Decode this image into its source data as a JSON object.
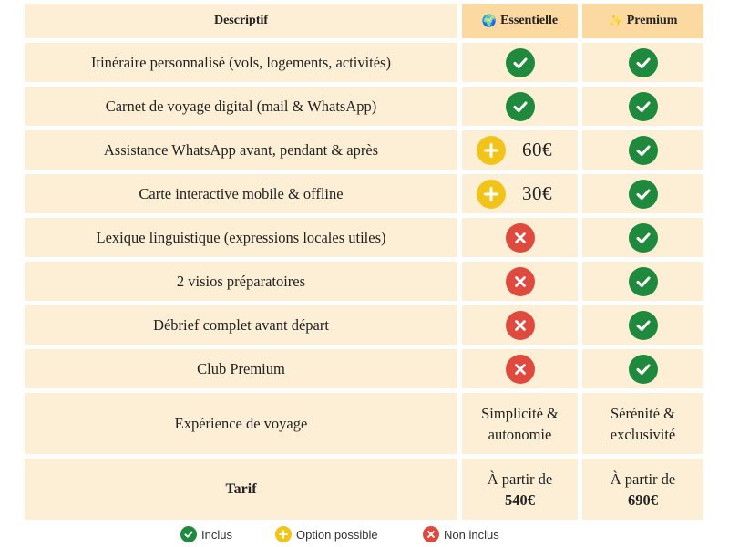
{
  "header": {
    "descriptif": "Descriptif",
    "essentielle": "Essentielle",
    "premium": "Premium",
    "essentielle_icon": "globe-icon",
    "premium_icon": "sparkle-icon"
  },
  "rows": [
    {
      "label": "Itinéraire personnalisé (vols, logements, activités)",
      "essentielle": "included",
      "premium": "included"
    },
    {
      "label": "Carnet de voyage digital (mail & WhatsApp)",
      "essentielle": "included",
      "premium": "included"
    },
    {
      "label": "Assistance WhatsApp avant, pendant & après",
      "essentielle": "option",
      "essentielle_price": "60€",
      "premium": "included"
    },
    {
      "label": "Carte interactive mobile & offline",
      "essentielle": "option",
      "essentielle_price": "30€",
      "premium": "included"
    },
    {
      "label": "Lexique linguistique (expressions locales utiles)",
      "essentielle": "not-included",
      "premium": "included"
    },
    {
      "label": "2 visios préparatoires",
      "essentielle": "not-included",
      "premium": "included"
    },
    {
      "label": "Débrief complet avant départ",
      "essentielle": "not-included",
      "premium": "included"
    },
    {
      "label": "Club Premium",
      "essentielle": "not-included",
      "premium": "included"
    }
  ],
  "experience": {
    "label": "Expérience de voyage",
    "essentielle_line1": "Simplicité &",
    "essentielle_line2": "autonomie",
    "premium_line1": "Sérénité &",
    "premium_line2": "exclusivité"
  },
  "tarif": {
    "label": "Tarif",
    "essentielle_line1": "À partir de",
    "essentielle_price": "540€",
    "premium_line1": "À partir de",
    "premium_price": "690€"
  },
  "legend": {
    "included": "Inclus",
    "option": "Option possible",
    "not_included": "Non inclus"
  },
  "colors": {
    "cell": "#fdefd6",
    "header_plan": "#fcd9a0",
    "check": "#1f8a3e",
    "cross": "#e04a3e",
    "plus": "#f2c41a"
  }
}
